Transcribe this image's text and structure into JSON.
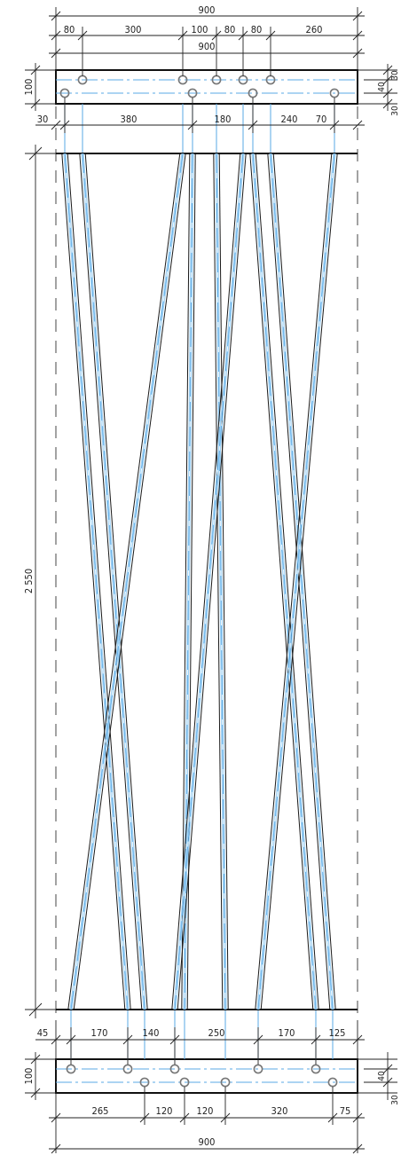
{
  "top_dims": {
    "overall": "900",
    "seg_80a": "80",
    "seg_300": "300",
    "seg_100": "100",
    "seg_80b": "80",
    "seg_80c": "80",
    "seg_260": "260",
    "overall2": "900",
    "height_100": "100",
    "right_30a": "30",
    "right_40": "40",
    "right_30b": "30",
    "left_30": "30",
    "seg_380": "380",
    "seg_180": "180",
    "seg_240": "240",
    "seg_70": "70"
  },
  "height_dim": "2 550",
  "bottom_dims": {
    "seg_45": "45",
    "seg_170a": "170",
    "seg_140": "140",
    "seg_250": "250",
    "seg_170b": "170",
    "seg_125": "125",
    "height_100": "100",
    "right_40": "40",
    "right_30": "30",
    "seg_265": "265",
    "seg_120a": "120",
    "seg_120b": "120",
    "seg_320": "320",
    "seg_75": "75",
    "overall": "900"
  },
  "colors": {
    "line": "#1a1a1a",
    "centerline": "#5aa9e6",
    "bolt": "#777777"
  }
}
